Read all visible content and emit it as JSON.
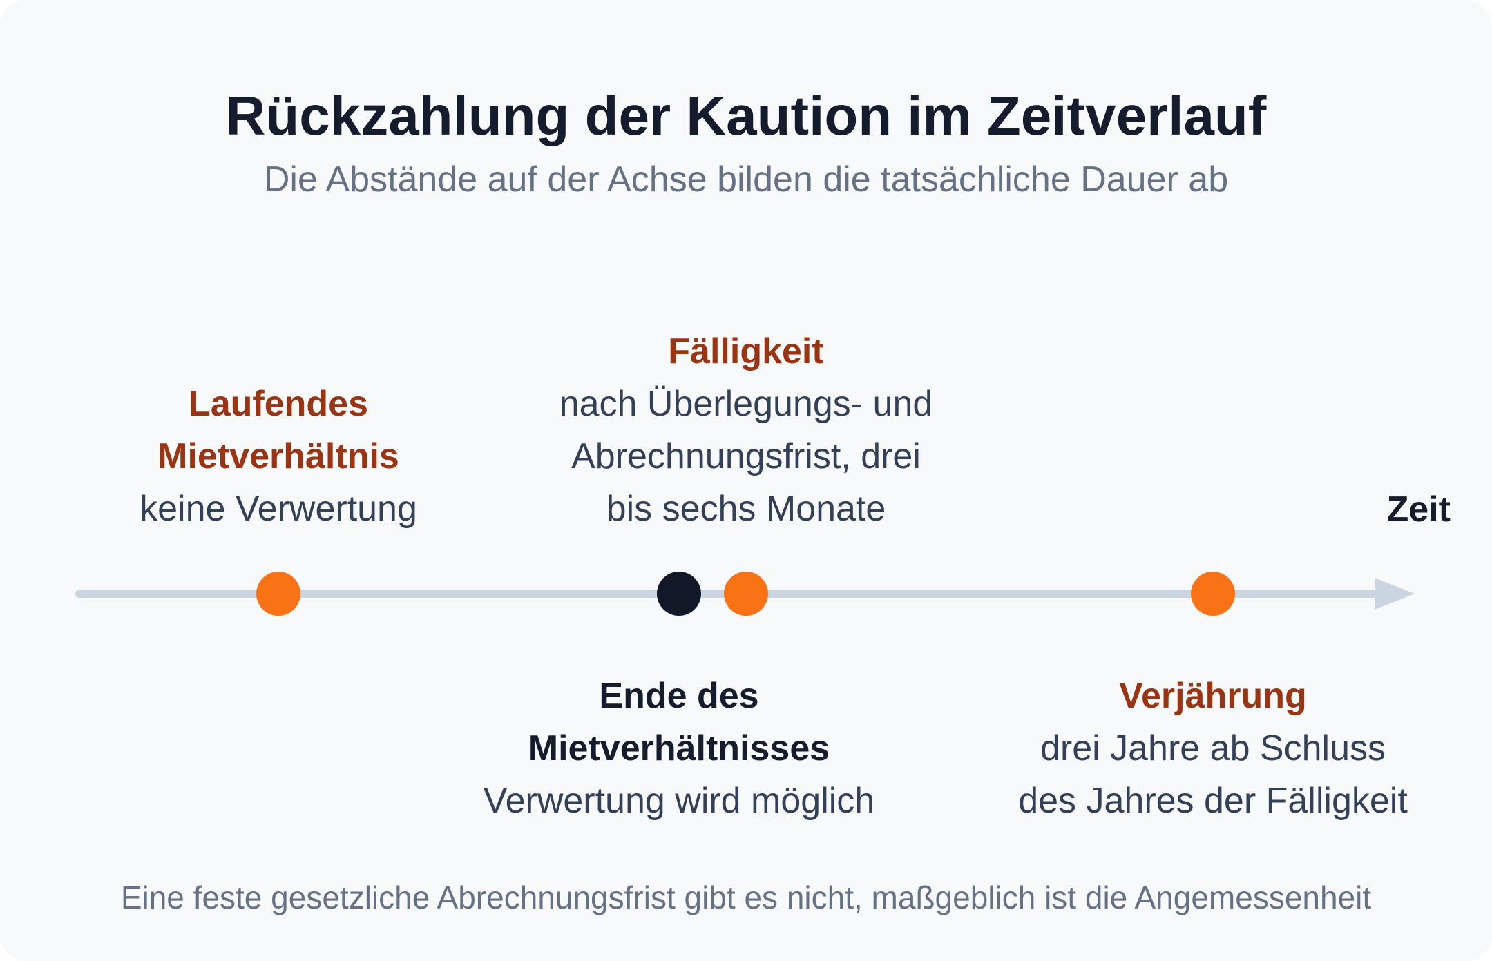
{
  "title": "Rückzahlung der Kaution im Zeitverlauf",
  "subtitle": "Die Abstände auf der Achse bilden die tatsächliche Dauer ab",
  "axis_label": "Zeit",
  "footer": "Eine feste gesetzliche Abrechnungsfrist gibt es nicht, maßgeblich ist die Angemessenheit",
  "colors": {
    "accent": "#f97316",
    "accent_text": "#9a3412",
    "dark": "#111827",
    "axis": "#cbd5e1"
  },
  "events": [
    {
      "id": "laufendes-mietverhaeltnis",
      "marker": "accent",
      "heading_lines": [
        "Laufendes",
        "Mietverhältnis"
      ],
      "body_lines": [
        "keine Verwertung"
      ]
    },
    {
      "id": "ende-des-mietverhaeltnisses",
      "marker": "dark",
      "heading_lines": [
        "Ende des",
        "Mietverhältnisses"
      ],
      "body_lines": [
        "Verwertung wird möglich"
      ]
    },
    {
      "id": "faelligkeit",
      "marker": "accent",
      "heading_lines": [
        "Fälligkeit"
      ],
      "body_lines": [
        "nach Überlegungs- und",
        "Abrechnungsfrist, drei",
        "bis sechs Monate"
      ]
    },
    {
      "id": "verjaehrung",
      "marker": "accent",
      "heading_lines": [
        "Verjährung"
      ],
      "body_lines": [
        "drei Jahre ab Schluss",
        "des Jahres der Fälligkeit"
      ]
    }
  ]
}
